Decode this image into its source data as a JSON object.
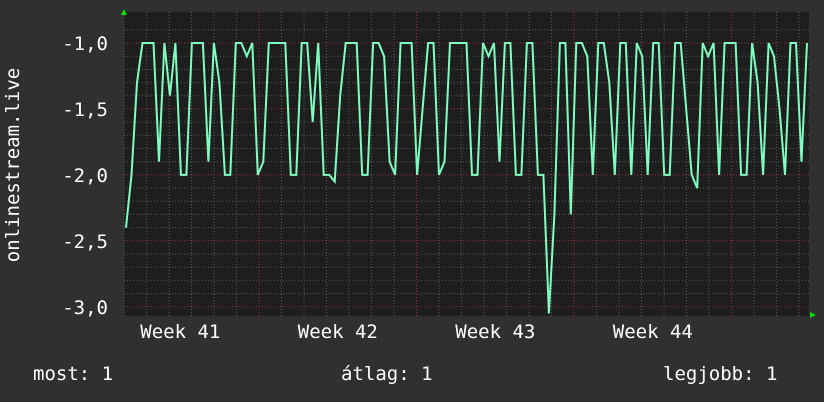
{
  "chart_data": {
    "type": "line",
    "title": "",
    "ylabel": "onlinestream.live",
    "xlabel": "",
    "ylim": [
      -3.07,
      -0.765
    ],
    "y_ticks": [
      "-1,0",
      "-1,5",
      "-2,0",
      "-2,5",
      "-3,0"
    ],
    "y_tick_values": [
      -1.0,
      -1.5,
      -2.0,
      -2.5,
      -3.0
    ],
    "x_tick_labels": [
      "Week 41",
      "Week 42",
      "Week 43",
      "Week 44"
    ],
    "grid": true,
    "series": [
      {
        "color": "#80ffc0",
        "values": [
          -2.4,
          -2.0,
          -1.3,
          -1.0,
          -1.0,
          -1.0,
          -1.9,
          -1.0,
          -1.4,
          -1.0,
          -2.0,
          -2.0,
          -1.0,
          -1.0,
          -1.0,
          -1.9,
          -1.0,
          -1.3,
          -2.0,
          -2.0,
          -1.0,
          -1.0,
          -1.1,
          -1.0,
          -2.0,
          -1.9,
          -1.0,
          -1.0,
          -1.0,
          -1.0,
          -2.0,
          -2.0,
          -1.0,
          -1.0,
          -1.6,
          -1.0,
          -2.0,
          -2.0,
          -2.05,
          -1.4,
          -1.0,
          -1.0,
          -1.0,
          -2.0,
          -2.0,
          -1.0,
          -1.0,
          -1.1,
          -1.9,
          -2.0,
          -1.0,
          -1.0,
          -1.0,
          -2.0,
          -1.5,
          -1.0,
          -1.0,
          -2.0,
          -1.9,
          -1.0,
          -1.0,
          -1.0,
          -1.0,
          -2.0,
          -2.0,
          -1.0,
          -1.1,
          -1.0,
          -1.9,
          -1.0,
          -1.0,
          -2.0,
          -2.0,
          -1.0,
          -1.0,
          -2.0,
          -2.0,
          -3.05,
          -2.3,
          -1.0,
          -1.0,
          -2.3,
          -1.0,
          -1.0,
          -1.1,
          -2.0,
          -1.0,
          -1.0,
          -1.3,
          -2.0,
          -1.0,
          -1.0,
          -2.0,
          -1.0,
          -1.1,
          -2.0,
          -1.0,
          -1.0,
          -2.0,
          -2.0,
          -1.0,
          -1.0,
          -1.5,
          -2.0,
          -2.1,
          -1.0,
          -1.1,
          -1.0,
          -2.0,
          -1.0,
          -1.0,
          -1.0,
          -2.0,
          -2.0,
          -1.0,
          -1.3,
          -2.0,
          -1.0,
          -1.1,
          -1.5,
          -2.0,
          -1.0,
          -1.0,
          -1.9,
          -1.0
        ]
      }
    ]
  },
  "legend": {
    "current": "most: 1",
    "average": "átlag: 1",
    "maximum": "legjobb: 1"
  },
  "colors": {
    "background": "#303030",
    "plot_background": "#1e1e1e",
    "minor_grid": "#5a5a5a",
    "major_grid": "#a03232",
    "arrow": "#00dd00"
  }
}
